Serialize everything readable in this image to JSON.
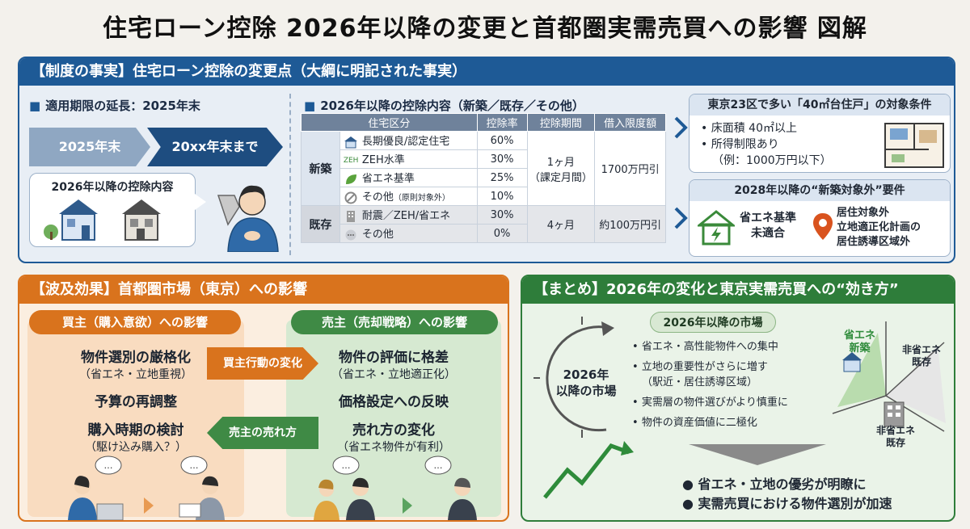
{
  "title": "住宅ローン控除 2026年以降の変更と首都圏実需売買への影響 図解",
  "top": {
    "header": "【制度の事実】住宅ローン控除の変更点（大綱に明記された事実）",
    "ext_title": "適用期限の延長：2025年末",
    "arrow1": "2025年末",
    "arrow2": "20xx年末まで",
    "bubble_title": "2026年以降の控除内容",
    "table_title": "2026年以降の控除内容（新築／既存／その他）",
    "table_headers": [
      "住宅区分",
      "控除率",
      "控除期間",
      "借入限度額"
    ],
    "new_label": "新築",
    "existing_label": "既存",
    "rows_new": [
      {
        "label": "長期優良/認定住宅",
        "rate": "60%"
      },
      {
        "label": "ZEH水準",
        "rate": "30%"
      },
      {
        "label": "省エネ基準",
        "rate": "25%"
      },
      {
        "label": "その他",
        "note": "（原則対象外）",
        "rate": "10%"
      }
    ],
    "new_period": "1ヶ月",
    "new_period_note": "（課定月間）",
    "new_limit": "1700万円引",
    "rows_existing": [
      {
        "label": "耐震／ZEH/省エネ",
        "rate": "30%"
      },
      {
        "label": "その他",
        "rate": "0%"
      }
    ],
    "existing_period": "4ヶ月",
    "existing_limit": "約100万円引",
    "tokyo_box_title": "東京23区で多い「40㎡台住戸」の対象条件",
    "tokyo_items": [
      "床面積 40㎡以上",
      "所得制限あり",
      "（例：1000万円以下）"
    ],
    "y2028_title": "2028年以降の“新築対象外”要件",
    "y2028_left": [
      "省エネ基準",
      "未適合"
    ],
    "y2028_right": [
      "居住対象外",
      "立地適正化計画の",
      "居住誘導区域外"
    ],
    "zeh_icon_text": "ZEH"
  },
  "left_bottom": {
    "header": "【波及効果】首都圏市場（東京）への影響",
    "buyer_pill": "買主（購入意欲）への影響",
    "seller_pill": "売主（売却戦略）への影響",
    "buyer_items": [
      {
        "b": "物件選別の厳格化",
        "s": "（省エネ・立地重視）"
      },
      {
        "b": "予算の再調整",
        "s": ""
      },
      {
        "b": "購入時期の検討",
        "s": "（駆け込み購入？）"
      }
    ],
    "seller_items": [
      {
        "b": "物件の評価に格差",
        "s": "（省エネ・立地適正化）"
      },
      {
        "b": "価格設定への反映",
        "s": ""
      },
      {
        "b": "売れ方の変化",
        "s": "（省エネ物件が有利）"
      }
    ],
    "arrow_right": "買主行動の変化",
    "arrow_left": "売主の売れ方",
    "speech": "…"
  },
  "right_bottom": {
    "header": "【まとめ】2026年の変化と東京実需売買への“効き方”",
    "market_pill": "2026年以降の市場",
    "circle_label": [
      "2026年",
      "以降の市場"
    ],
    "points": [
      "省エネ・高性能物件への集中",
      "立地の重要性がさらに増す",
      "（駅近・居住誘導区域）",
      "実需層の物件選びがより慎重に",
      "物件の資産価値に二極化"
    ],
    "quad": {
      "tl": [
        "省エネ",
        "新築"
      ],
      "tr": [
        "非省エネ",
        "既存"
      ],
      "br": [
        "非省エネ",
        "既存"
      ]
    },
    "conclusions": [
      "省エネ・立地の優劣が明瞭に",
      "実需売買における物件選別が加速"
    ]
  },
  "colors": {
    "blue": "#1e5a96",
    "orange": "#d9731d",
    "green": "#2e7d3a"
  }
}
